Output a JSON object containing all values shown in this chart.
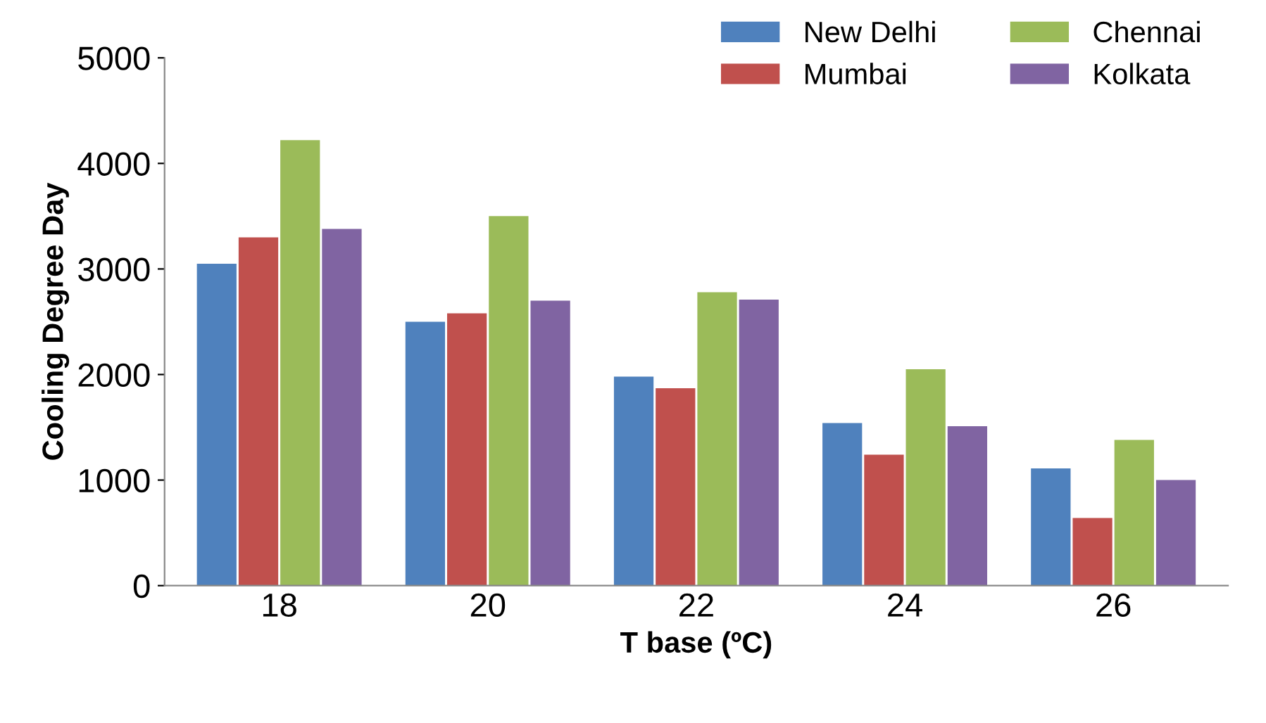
{
  "chart_data": {
    "type": "bar",
    "xlabel": "T base (ºC)",
    "ylabel": "Cooling Degree Day",
    "categories": [
      "18",
      "20",
      "22",
      "24",
      "26"
    ],
    "series": [
      {
        "name": "New Delhi",
        "color": "#4f81bd",
        "values": [
          3050,
          2500,
          1980,
          1540,
          1110
        ]
      },
      {
        "name": "Mumbai",
        "color": "#c0504d",
        "values": [
          3300,
          2580,
          1870,
          1240,
          640
        ]
      },
      {
        "name": "Chennai",
        "color": "#9bbb59",
        "values": [
          4220,
          3500,
          2780,
          2050,
          1380
        ]
      },
      {
        "name": "Kolkata",
        "color": "#8064a2",
        "values": [
          3380,
          2700,
          2710,
          1510,
          1000
        ]
      }
    ],
    "ylim": [
      0,
      5000
    ],
    "yticks": [
      0,
      1000,
      2000,
      3000,
      4000,
      5000
    ],
    "grid": false,
    "legend": "top right"
  }
}
